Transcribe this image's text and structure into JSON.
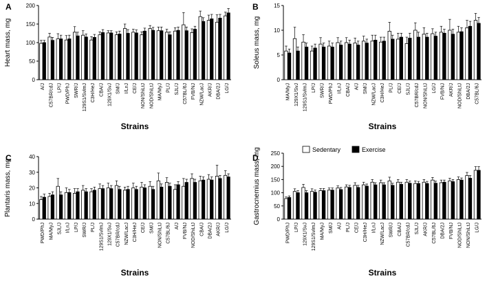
{
  "legend": {
    "position": "top-right of panel D",
    "sedentary_label": "Sedentary",
    "exercise_label": "Exercise",
    "sedentary_color": "#ffffff",
    "exercise_color": "#000000"
  },
  "chart_data": [
    {
      "type": "bar",
      "panel_label": "A",
      "ylabel": "Heart mass, mg",
      "xlabel": "Strains",
      "ylim": [
        0,
        200
      ],
      "yticks": [
        0,
        50,
        100,
        150,
        200
      ],
      "categories": [
        "A/J",
        "C57BR/cdJ",
        "LP/J",
        "PWD/PhJ",
        "SWR/J",
        "129S1/SvlmJ",
        "C3H/HeJ",
        "CBA/J",
        "129X1/SvJ",
        "SM/J",
        "I/LnJ",
        "CE/J",
        "NON/ShiLtJ",
        "NOD/ShiLtJ",
        "MA/MyJ",
        "PL/J",
        "SJL/J",
        "C57BL/6J",
        "FVB/NJ",
        "NZW/LacJ",
        "AKR/J",
        "DBA/2J",
        "LG/J"
      ],
      "series": [
        {
          "name": "Sedentary",
          "values": [
            98,
            115,
            110,
            107,
            128,
            120,
            107,
            121,
            126,
            121,
            138,
            128,
            121,
            138,
            132,
            128,
            131,
            148,
            127,
            170,
            160,
            155,
            172
          ],
          "errors": [
            8,
            10,
            14,
            12,
            15,
            12,
            9,
            8,
            6,
            8,
            12,
            8,
            8,
            8,
            10,
            8,
            9,
            33,
            10,
            15,
            14,
            20,
            10
          ]
        },
        {
          "name": "Exercise",
          "values": [
            100,
            106,
            110,
            110,
            118,
            115,
            114,
            127,
            126,
            123,
            125,
            126,
            131,
            133,
            132,
            121,
            133,
            132,
            136,
            157,
            164,
            166,
            180
          ],
          "errors": [
            6,
            8,
            10,
            10,
            10,
            8,
            8,
            8,
            6,
            8,
            10,
            8,
            8,
            8,
            10,
            8,
            9,
            10,
            8,
            10,
            12,
            10,
            12
          ]
        }
      ]
    },
    {
      "type": "bar",
      "panel_label": "B",
      "ylabel": "Soleus mass, mg",
      "xlabel": "Strains",
      "ylim": [
        0,
        15
      ],
      "yticks": [
        0,
        5,
        10,
        15
      ],
      "categories": [
        "MA/MyJ",
        "129X1/SvJ",
        "129S1/SvlmJ",
        "LP/J",
        "SWR/J",
        "PWD/PhJ",
        "I/LnJ",
        "CBA/J",
        "A/J",
        "SM/J",
        "NZW/LacJ",
        "C3H/HeJ",
        "PL/J",
        "CE/J",
        "SJL/J",
        "C57BR/cdJ",
        "NON/ShiLtJ",
        "LG/J",
        "FVB/NJ",
        "AKR/J",
        "NOD/ShiLtJ",
        "DBA/2J",
        "C57BL/6J"
      ],
      "series": [
        {
          "name": "Sedentary",
          "values": [
            5.8,
            8.3,
            7.6,
            5.8,
            7.2,
            6.8,
            7.5,
            7.5,
            7.4,
            7.8,
            7.8,
            7.6,
            9.8,
            8.2,
            7.3,
            10.0,
            9.2,
            9.3,
            9.6,
            10.0,
            9.6,
            10.5,
            12.0
          ],
          "errors": [
            1.0,
            2.3,
            1.5,
            1.0,
            1.3,
            1.0,
            1.0,
            1.0,
            1.0,
            1.0,
            1.2,
            1.0,
            1.8,
            1.2,
            1.3,
            1.5,
            1.3,
            1.0,
            1.2,
            2.2,
            1.2,
            1.5,
            1.4
          ]
        },
        {
          "name": "Exercise",
          "values": [
            5.4,
            5.8,
            6.6,
            6.4,
            6.6,
            6.6,
            7.0,
            7.2,
            7.0,
            7.4,
            8.0,
            7.8,
            8.2,
            8.6,
            8.4,
            8.6,
            8.6,
            8.8,
            9.4,
            9.2,
            9.7,
            10.8,
            11.4
          ],
          "errors": [
            0.8,
            0.8,
            0.8,
            0.8,
            0.8,
            0.8,
            0.8,
            0.8,
            0.8,
            0.8,
            1.0,
            0.8,
            0.8,
            0.8,
            1.0,
            1.0,
            0.8,
            0.8,
            0.8,
            1.0,
            0.8,
            1.0,
            1.2
          ]
        }
      ]
    },
    {
      "type": "bar",
      "panel_label": "C",
      "ylabel": "Plantaris mass, mg",
      "xlabel": "Strains",
      "ylim": [
        0,
        40
      ],
      "yticks": [
        0,
        10,
        20,
        30,
        40
      ],
      "categories": [
        "PWD/PhJ",
        "MA/MyJ",
        "SJL/J",
        "I/LnJ",
        "LP/J",
        "SWR/J",
        "PL/J",
        "129S1/SvlmJ",
        "129X1/SvJ",
        "C57BR/cdJ",
        "NZW/LacJ",
        "C3H/HeJ",
        "CE/J",
        "SM/J",
        "NON/ShiLtJ",
        "C57BL/6J",
        "A/J",
        "FVB/NJ",
        "NOD/ShiLtJ",
        "CBA/J",
        "DBA/2J",
        "AKR/J",
        "LG/J"
      ],
      "series": [
        {
          "name": "Sedentary",
          "values": [
            12.5,
            14.5,
            21.0,
            17.0,
            16.5,
            18.5,
            17.5,
            19.5,
            20.0,
            21.5,
            18.5,
            20.0,
            20.5,
            21.0,
            24.5,
            23.5,
            19.0,
            21.0,
            26.0,
            24.5,
            25.5,
            27.5,
            28.0
          ],
          "errors": [
            2,
            2,
            5,
            3,
            3,
            3,
            2,
            3,
            3,
            3,
            2,
            3,
            3,
            3,
            5,
            3,
            3,
            5,
            3,
            3,
            3,
            7,
            3
          ]
        },
        {
          "name": "Exercise",
          "values": [
            14.0,
            15.5,
            15.5,
            17.0,
            17.5,
            17.5,
            18.5,
            19.5,
            19.5,
            19.0,
            19.0,
            19.0,
            20.0,
            19.0,
            20.5,
            21.0,
            22.0,
            23.5,
            23.5,
            25.0,
            25.0,
            26.0,
            27.0
          ],
          "errors": [
            2,
            2,
            2,
            2,
            2,
            2,
            2,
            2,
            2,
            2,
            2,
            2,
            2,
            2,
            2,
            2,
            2,
            2,
            2,
            2,
            2,
            2,
            2
          ]
        }
      ]
    },
    {
      "type": "bar",
      "panel_label": "D",
      "ylabel": "Gastrocnemius mass, mg",
      "xlabel": "Strains",
      "ylim": [
        0,
        250
      ],
      "yticks": [
        0,
        50,
        100,
        150,
        200,
        250
      ],
      "categories": [
        "PWD/PhJ",
        "LP/J",
        "129X1/SvJ",
        "129S1/SvlmJ",
        "MA/MyJ",
        "SM/J",
        "A/J",
        "PL/J",
        "CE/J",
        "C3H/HeJ",
        "I/LnJ",
        "NZW/LacJ",
        "SWR/J",
        "CBA/J",
        "C57BR/cdJ",
        "SJL/J",
        "AKR/J",
        "C57BL/6J",
        "DBA/2J",
        "FVB/NJ",
        "NOD/ShiLtJ",
        "NON/ShiLtJ",
        "LG/J"
      ],
      "series": [
        {
          "name": "Sedentary",
          "values": [
            78,
            105,
            120,
            105,
            108,
            110,
            118,
            122,
            128,
            130,
            140,
            138,
            145,
            140,
            140,
            135,
            140,
            148,
            138,
            145,
            150,
            165,
            185
          ],
          "errors": [
            6,
            10,
            12,
            10,
            8,
            8,
            8,
            8,
            10,
            10,
            10,
            10,
            14,
            10,
            10,
            10,
            10,
            10,
            10,
            10,
            10,
            12,
            14
          ]
        },
        {
          "name": "Exercise",
          "values": [
            82,
            100,
            100,
            102,
            108,
            110,
            112,
            120,
            120,
            125,
            130,
            130,
            128,
            132,
            136,
            135,
            135,
            136,
            140,
            142,
            148,
            155,
            185
          ],
          "errors": [
            6,
            8,
            8,
            8,
            8,
            8,
            8,
            8,
            8,
            8,
            8,
            8,
            8,
            8,
            8,
            8,
            8,
            8,
            8,
            8,
            8,
            10,
            14
          ]
        }
      ]
    }
  ]
}
